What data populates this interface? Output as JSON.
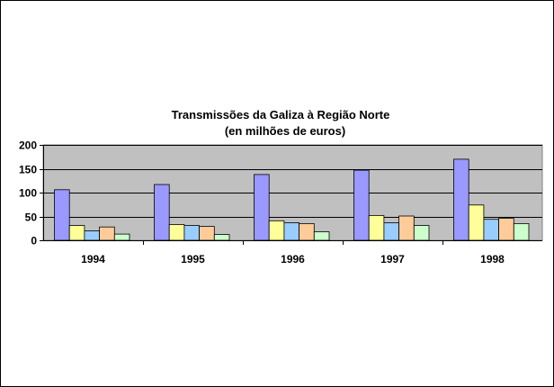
{
  "chart_data": {
    "type": "bar",
    "title": "Transmissões da Galiza à Região Norte",
    "subtitle": "(en milhões de euros)",
    "xlabel": "",
    "ylabel": "",
    "categories": [
      "1994",
      "1995",
      "1996",
      "1997",
      "1998"
    ],
    "ylim": [
      0,
      200
    ],
    "yticks": [
      0,
      50,
      100,
      150,
      200
    ],
    "grid": true,
    "legend": "none",
    "plot_background": "#c0c0c0",
    "series": [
      {
        "color": "#9999ff",
        "values": [
          106,
          117,
          138,
          147,
          170
        ]
      },
      {
        "color": "#ffff99",
        "values": [
          31,
          33,
          41,
          52,
          74
        ]
      },
      {
        "color": "#99ccff",
        "values": [
          20,
          31,
          37,
          37,
          44
        ]
      },
      {
        "color": "#ffcc99",
        "values": [
          28,
          29,
          35,
          51,
          46
        ]
      },
      {
        "color": "#ccffcc",
        "values": [
          13,
          12,
          18,
          31,
          35
        ]
      }
    ]
  }
}
